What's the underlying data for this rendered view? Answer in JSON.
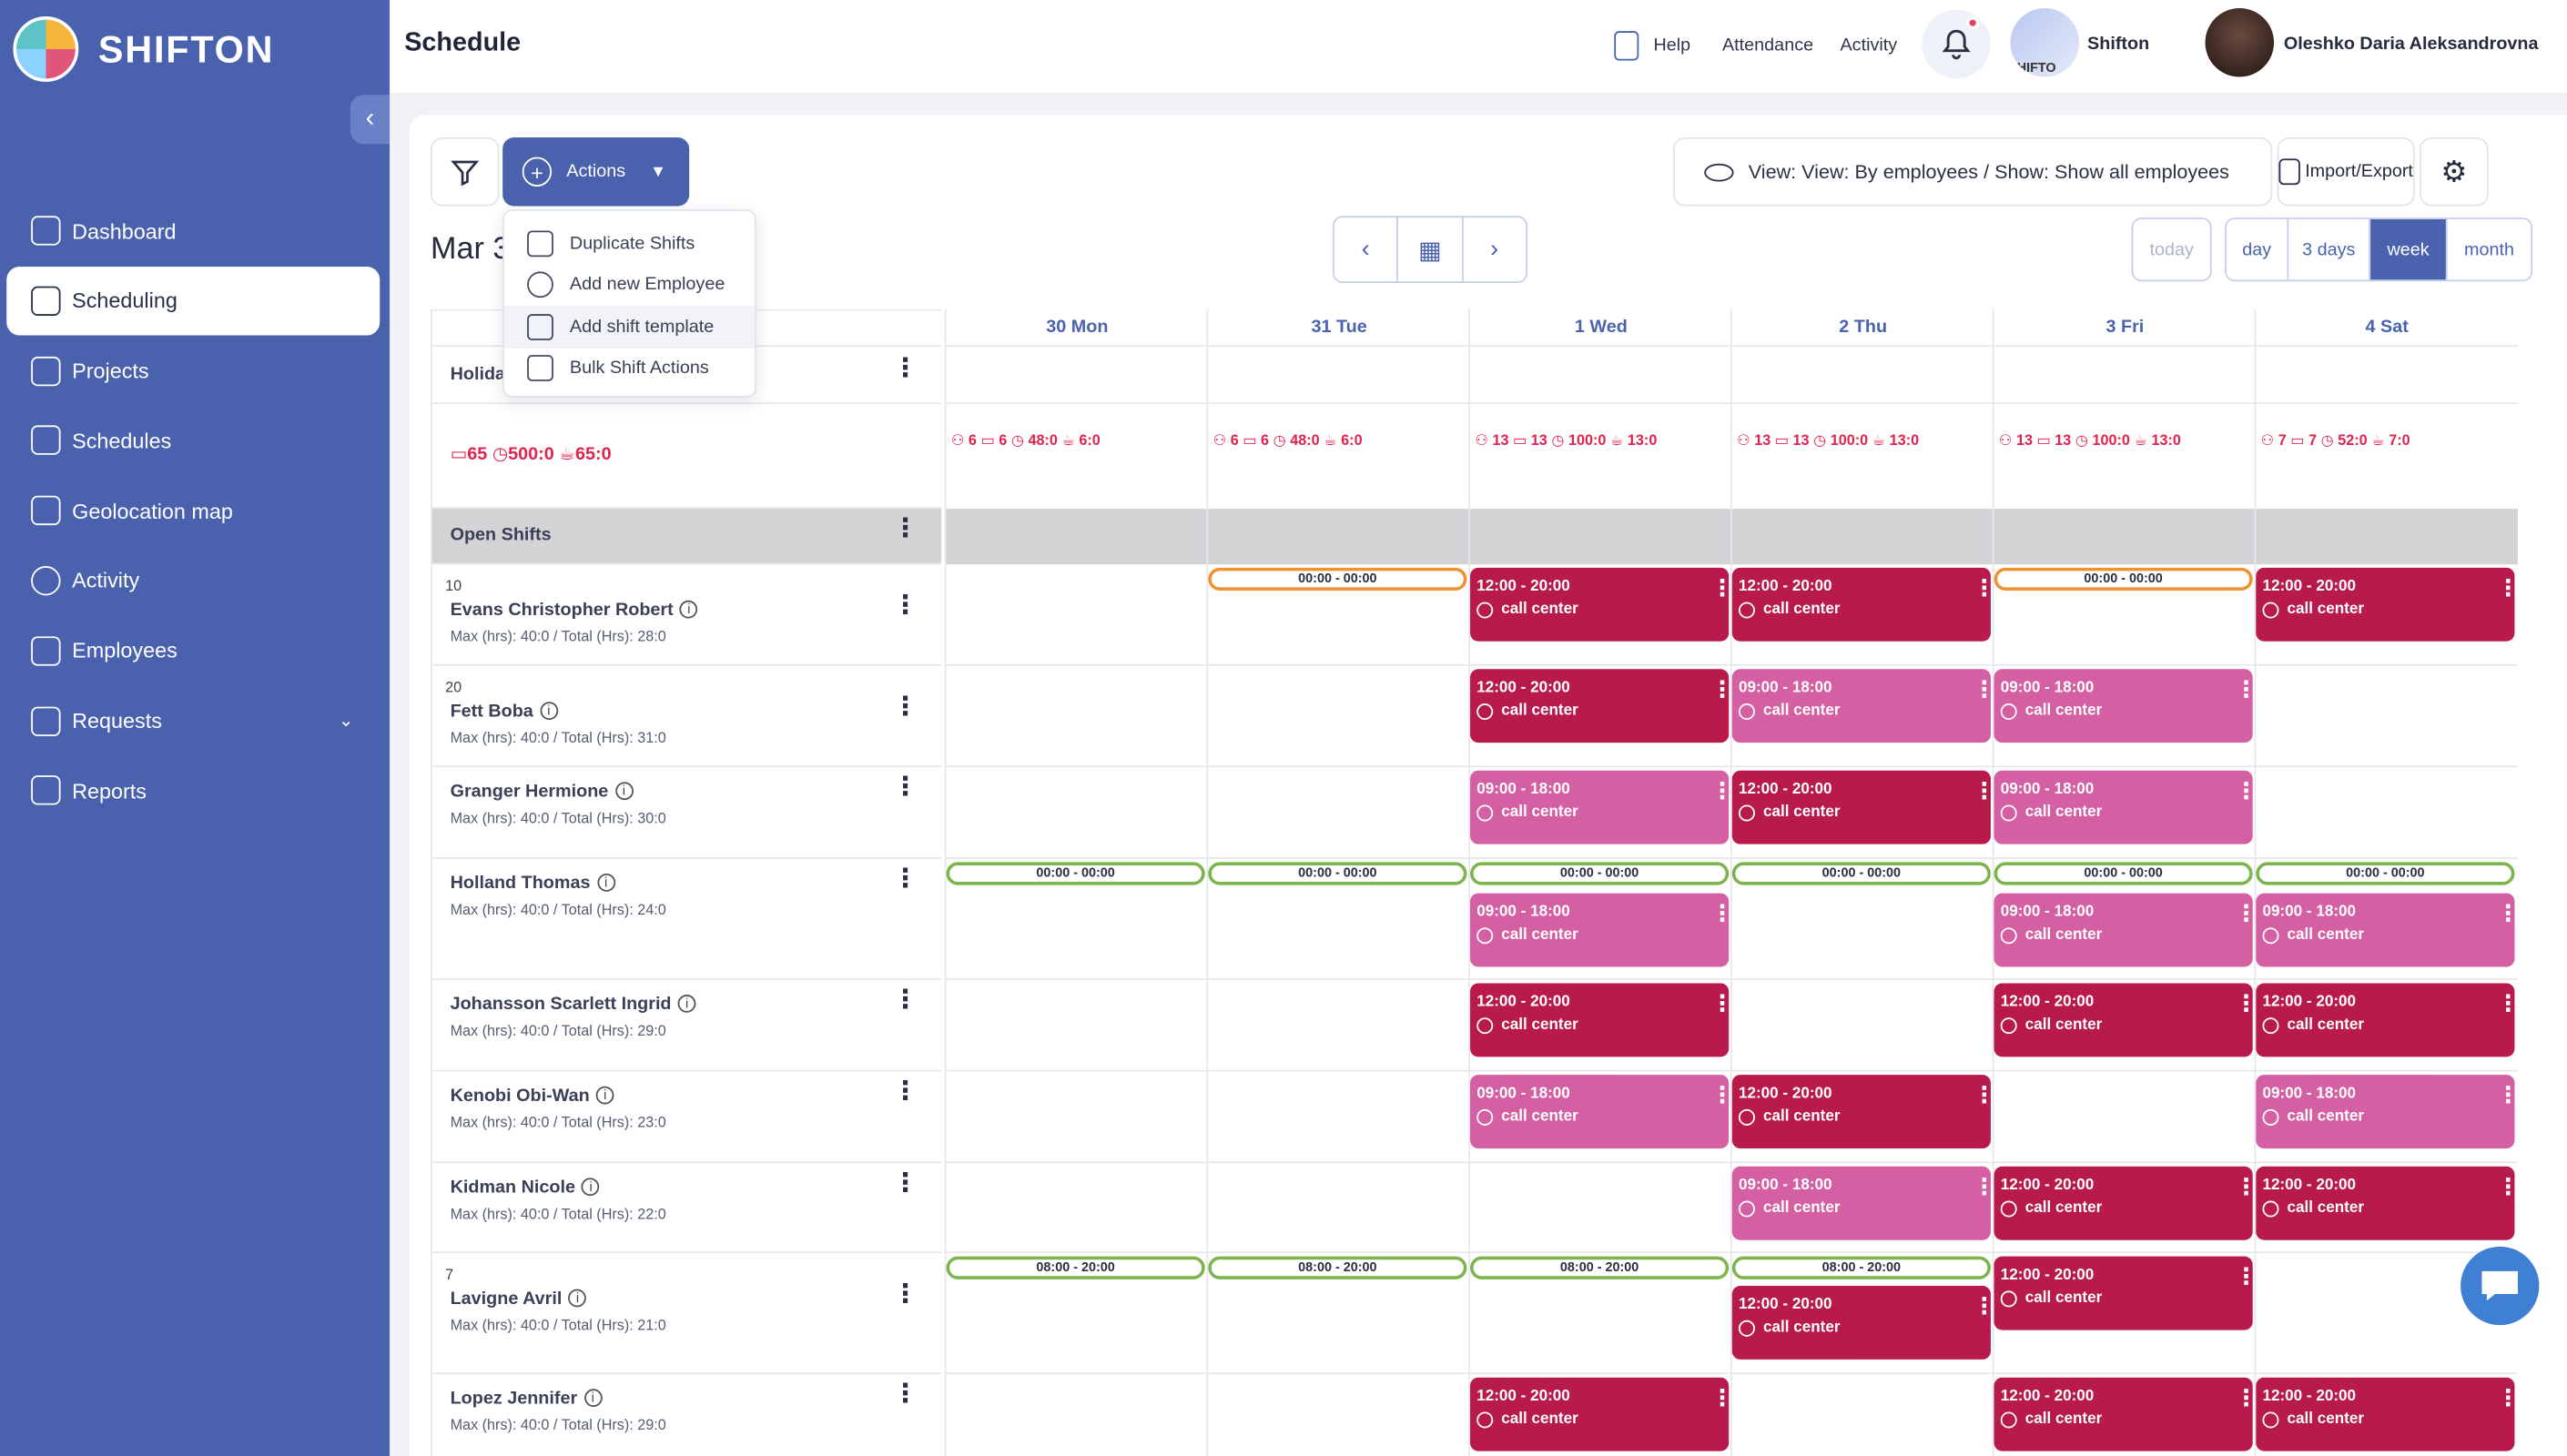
{
  "brand": {
    "name": "SHIFTON"
  },
  "sidebar": {
    "items": [
      {
        "label": "Dashboard"
      },
      {
        "label": "Scheduling"
      },
      {
        "label": "Projects"
      },
      {
        "label": "Schedules"
      },
      {
        "label": "Geolocation map"
      },
      {
        "label": "Activity"
      },
      {
        "label": "Employees"
      },
      {
        "label": "Requests"
      },
      {
        "label": "Reports"
      }
    ]
  },
  "header": {
    "title": "Schedule",
    "help": "Help",
    "attendance": "Attendance",
    "activity": "Activity",
    "org_name": "Shifton",
    "org_avatar_text": "HIFTO",
    "user_name": "Oleshko Daria Aleksandrovna"
  },
  "toolbar": {
    "actions_label": "Actions",
    "view_label": "View: View: By employees / Show: Show all employees",
    "import_label": "Import/Export",
    "date_label": "Mar 3",
    "today": "today",
    "ranges": [
      "day",
      "3 days",
      "week",
      "month"
    ]
  },
  "actions_menu": [
    "Duplicate Shifts",
    "Add new Employee",
    "Add shift template",
    "Bulk Shift Actions"
  ],
  "days": [
    {
      "label": "30 Mon",
      "stats": {
        "emp": "6",
        "shifts": "6",
        "hours": "48:0",
        "breaks": "6:0"
      }
    },
    {
      "label": "31 Tue",
      "stats": {
        "emp": "6",
        "shifts": "6",
        "hours": "48:0",
        "breaks": "6:0"
      }
    },
    {
      "label": "1 Wed",
      "stats": {
        "emp": "13",
        "shifts": "13",
        "hours": "100:0",
        "breaks": "13:0"
      }
    },
    {
      "label": "2 Thu",
      "stats": {
        "emp": "13",
        "shifts": "13",
        "hours": "100:0",
        "breaks": "13:0"
      }
    },
    {
      "label": "3 Fri",
      "stats": {
        "emp": "13",
        "shifts": "13",
        "hours": "100:0",
        "breaks": "13:0"
      }
    },
    {
      "label": "4 Sat",
      "stats": {
        "emp": "7",
        "shifts": "7",
        "hours": "52:0",
        "breaks": "7:0"
      }
    }
  ],
  "summary": {
    "shifts": "65",
    "hours": "500:0",
    "breaks": "65:0"
  },
  "holiday_label": "Holida",
  "open_shifts_label": "Open Shifts",
  "employees": [
    {
      "num": "10",
      "name": "Evans Christopher Robert",
      "meta": "Max (hrs): 40:0 / Total (Hrs): 28:0"
    },
    {
      "num": "20",
      "name": "Fett Boba",
      "meta": "Max (hrs): 40:0 / Total (Hrs): 31:0"
    },
    {
      "num": "",
      "name": "Granger Hermione",
      "meta": "Max (hrs): 40:0 / Total (Hrs): 30:0"
    },
    {
      "num": "",
      "name": "Holland Thomas",
      "meta": "Max (hrs): 40:0 / Total (Hrs): 24:0"
    },
    {
      "num": "",
      "name": "Johansson Scarlett Ingrid",
      "meta": "Max (hrs): 40:0 / Total (Hrs): 29:0"
    },
    {
      "num": "",
      "name": "Kenobi Obi-Wan",
      "meta": "Max (hrs): 40:0 / Total (Hrs): 23:0"
    },
    {
      "num": "",
      "name": "Kidman Nicole",
      "meta": "Max (hrs): 40:0 / Total (Hrs): 22:0"
    },
    {
      "num": "7",
      "name": "Lavigne Avril",
      "meta": "Max (hrs): 40:0 / Total (Hrs): 21:0"
    },
    {
      "num": "",
      "name": "Lopez Jennifer",
      "meta": "Max (hrs): 40:0 / Total (Hrs): 29:0"
    }
  ],
  "shifts": [
    {
      "row": 0,
      "day": 1,
      "kind": "pill-orange",
      "time": "00:00 - 00:00"
    },
    {
      "row": 0,
      "day": 2,
      "kind": "dark",
      "time": "12:00 - 20:00",
      "loc": "call center"
    },
    {
      "row": 0,
      "day": 3,
      "kind": "dark",
      "time": "12:00 - 20:00",
      "loc": "call center"
    },
    {
      "row": 0,
      "day": 4,
      "kind": "pill-orange",
      "time": "00:00 - 00:00"
    },
    {
      "row": 0,
      "day": 5,
      "kind": "dark",
      "time": "12:00 - 20:00",
      "loc": "call center"
    },
    {
      "row": 1,
      "day": 2,
      "kind": "dark",
      "time": "12:00 - 20:00",
      "loc": "call center"
    },
    {
      "row": 1,
      "day": 3,
      "kind": "light",
      "time": "09:00 - 18:00",
      "loc": "call center"
    },
    {
      "row": 1,
      "day": 4,
      "kind": "light",
      "time": "09:00 - 18:00",
      "loc": "call center"
    },
    {
      "row": 2,
      "day": 2,
      "kind": "light",
      "time": "09:00 - 18:00",
      "loc": "call center"
    },
    {
      "row": 2,
      "day": 3,
      "kind": "dark",
      "time": "12:00 - 20:00",
      "loc": "call center"
    },
    {
      "row": 2,
      "day": 4,
      "kind": "light",
      "time": "09:00 - 18:00",
      "loc": "call center"
    },
    {
      "row": 3,
      "day": 0,
      "kind": "pill-green",
      "time": "00:00 - 00:00"
    },
    {
      "row": 3,
      "day": 1,
      "kind": "pill-green",
      "time": "00:00 - 00:00"
    },
    {
      "row": 3,
      "day": 2,
      "kind": "pill-green",
      "time": "00:00 - 00:00"
    },
    {
      "row": 3,
      "day": 3,
      "kind": "pill-green",
      "time": "00:00 - 00:00"
    },
    {
      "row": 3,
      "day": 4,
      "kind": "pill-green",
      "time": "00:00 - 00:00"
    },
    {
      "row": 3,
      "day": 5,
      "kind": "pill-green",
      "time": "00:00 - 00:00"
    },
    {
      "row": 3,
      "day": 2,
      "kind": "light",
      "time": "09:00 - 18:00",
      "loc": "call center",
      "second": true
    },
    {
      "row": 3,
      "day": 4,
      "kind": "light",
      "time": "09:00 - 18:00",
      "loc": "call center",
      "second": true
    },
    {
      "row": 3,
      "day": 5,
      "kind": "light",
      "time": "09:00 - 18:00",
      "loc": "call center",
      "second": true
    },
    {
      "row": 4,
      "day": 2,
      "kind": "dark",
      "time": "12:00 - 20:00",
      "loc": "call center"
    },
    {
      "row": 4,
      "day": 4,
      "kind": "dark",
      "time": "12:00 - 20:00",
      "loc": "call center"
    },
    {
      "row": 4,
      "day": 5,
      "kind": "dark",
      "time": "12:00 - 20:00",
      "loc": "call center"
    },
    {
      "row": 5,
      "day": 2,
      "kind": "light",
      "time": "09:00 - 18:00",
      "loc": "call center"
    },
    {
      "row": 5,
      "day": 3,
      "kind": "dark",
      "time": "12:00 - 20:00",
      "loc": "call center"
    },
    {
      "row": 5,
      "day": 5,
      "kind": "light",
      "time": "09:00 - 18:00",
      "loc": "call center"
    },
    {
      "row": 6,
      "day": 3,
      "kind": "light",
      "time": "09:00 - 18:00",
      "loc": "call center"
    },
    {
      "row": 6,
      "day": 4,
      "kind": "dark",
      "time": "12:00 - 20:00",
      "loc": "call center"
    },
    {
      "row": 6,
      "day": 5,
      "kind": "dark",
      "time": "12:00 - 20:00",
      "loc": "call center"
    },
    {
      "row": 7,
      "day": 0,
      "kind": "pill-green",
      "time": "08:00 - 20:00"
    },
    {
      "row": 7,
      "day": 1,
      "kind": "pill-green",
      "time": "08:00 - 20:00"
    },
    {
      "row": 7,
      "day": 2,
      "kind": "pill-green",
      "time": "08:00 - 20:00"
    },
    {
      "row": 7,
      "day": 3,
      "kind": "pill-green",
      "time": "08:00 - 20:00"
    },
    {
      "row": 7,
      "day": 3,
      "kind": "dark",
      "time": "12:00 - 20:00",
      "loc": "call center",
      "second": true
    },
    {
      "row": 7,
      "day": 4,
      "kind": "dark",
      "time": "12:00 - 20:00",
      "loc": "call center"
    },
    {
      "row": 8,
      "day": 2,
      "kind": "dark",
      "time": "12:00 - 20:00",
      "loc": "call center"
    },
    {
      "row": 8,
      "day": 4,
      "kind": "dark",
      "time": "12:00 - 20:00",
      "loc": "call center"
    },
    {
      "row": 8,
      "day": 5,
      "kind": "dark",
      "time": "12:00 - 20:00",
      "loc": "call center"
    }
  ],
  "colors": {
    "brand": "#4a62ad",
    "shift_dark": "#b81a4b",
    "shift_light": "#d45fa3",
    "open_pill": "#ee9332",
    "available_pill": "#7cb44d",
    "alert": "#e0234c"
  }
}
